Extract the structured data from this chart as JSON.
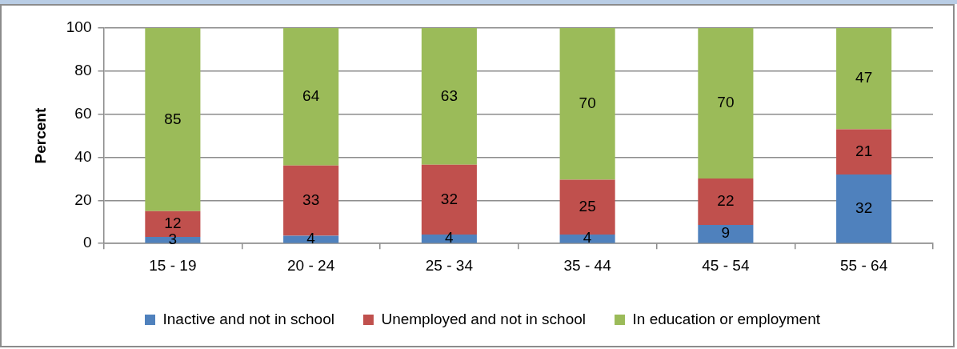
{
  "chart_data": {
    "type": "bar",
    "stacked": true,
    "ylabel": "Percent",
    "categories": [
      "15 - 19",
      "20 - 24",
      "25 - 34",
      "35 - 44",
      "45 - 54",
      "55 - 64"
    ],
    "series": [
      {
        "name": "Inactive and not in school",
        "color": "#4f81bd",
        "values": [
          3,
          3.6,
          4.2,
          4.2,
          8.6,
          32
        ],
        "value_labels": [
          "3",
          "4",
          "4",
          "4",
          "9",
          "32"
        ]
      },
      {
        "name": "Unemployed and not in school",
        "color": "#c0504d",
        "values": [
          12,
          32.6,
          32.4,
          25.4,
          21.6,
          21
        ],
        "value_labels": [
          "12",
          "33",
          "32",
          "25",
          "22",
          "21"
        ]
      },
      {
        "name": "In education or employment",
        "color": "#9bbb59",
        "values": [
          85,
          63.8,
          63.4,
          70.4,
          69.8,
          47
        ],
        "value_labels": [
          "85",
          "64",
          "63",
          "70",
          "70",
          "47"
        ]
      }
    ],
    "ylim": [
      0,
      100
    ],
    "yticks": [
      0,
      20,
      40,
      60,
      80,
      100
    ],
    "grid": "y",
    "legend": "bottom"
  }
}
